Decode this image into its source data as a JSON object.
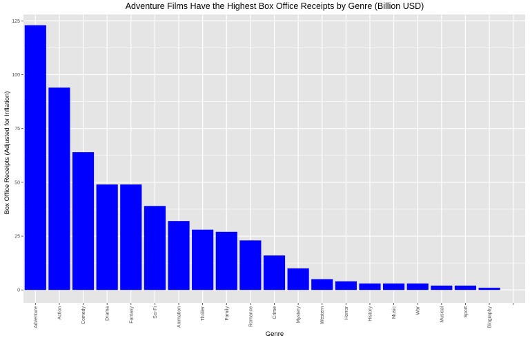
{
  "chart_data": {
    "type": "bar",
    "title": "Adventure Films Have the Highest Box Office Receipts by Genre (Billion USD)",
    "xlabel": "Genre",
    "ylabel": "Box Office Receipts (Adjusted for Inflation)",
    "categories": [
      "Adventure",
      "Action",
      "Comedy",
      "Drama",
      "Fantasy",
      "Sci-Fi",
      "Animation",
      "Thriller",
      "Family",
      "Romance",
      "Crime",
      "Mystery",
      "Western",
      "Horror",
      "History",
      "Music",
      "War",
      "Musical",
      "Sport",
      "Biography",
      ""
    ],
    "values": [
      123,
      94,
      64,
      49,
      49,
      39,
      32,
      28,
      27,
      23,
      16,
      10,
      5,
      4,
      3,
      3,
      3,
      2,
      2,
      1,
      0
    ],
    "ylim": [
      -6,
      128
    ],
    "yticks": [
      0,
      25,
      50,
      75,
      100,
      125
    ],
    "bar_color": "#0000FF",
    "panel_color": "#E5E5E5",
    "grid_color": "#FFFFFF",
    "grid": true,
    "legend": "none"
  }
}
